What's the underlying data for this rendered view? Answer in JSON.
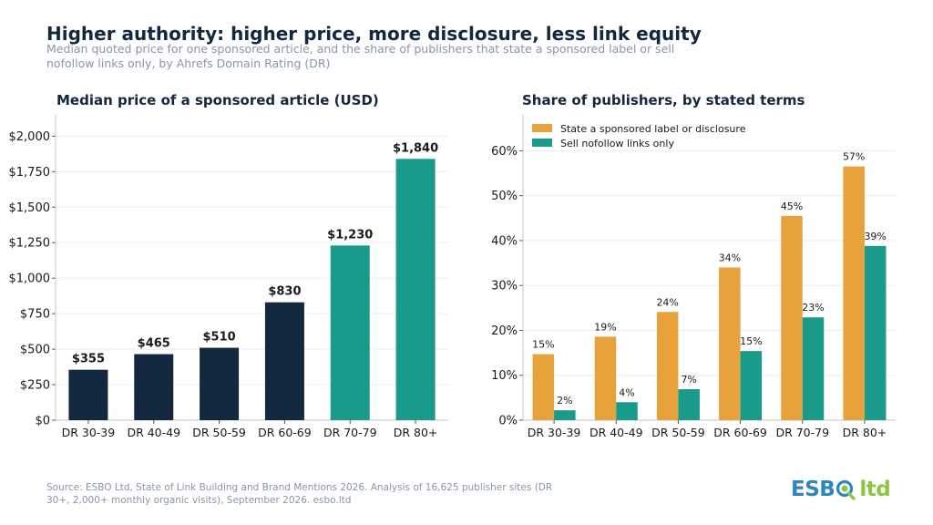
{
  "title": "Higher authority: higher price, more disclosure, less link equity",
  "subtitle": "Median quoted price for one sponsored article, and the share of publishers that state a sponsored label or sell nofollow links only, by Ahrefs Domain Rating (DR)",
  "source": "Source: ESBO Ltd, State of Link Building and Brand Mentions 2026. Analysis of 16,625 publisher sites (DR 30+, 2,000+ monthly organic visits), September 2026. esbo.ltd",
  "logo": {
    "part1": "ESB",
    "part2": "ltd",
    "icon": "magnifier-q-icon"
  },
  "colors": {
    "navy": "#13283f",
    "teal": "#1a9a8a",
    "orange": "#e8a23b",
    "grid": "#ebedf0",
    "axis": "#bfc4cc"
  },
  "chart_data": [
    {
      "type": "bar",
      "title": "Median price of a sponsored article (USD)",
      "categories": [
        "DR 30-39",
        "DR 40-49",
        "DR 50-59",
        "DR 60-69",
        "DR 70-79",
        "DR 80+"
      ],
      "values": [
        355,
        465,
        510,
        830,
        1230,
        1840
      ],
      "value_labels": [
        "$355",
        "$465",
        "$510",
        "$830",
        "$1,230",
        "$1,840"
      ],
      "bar_colors": [
        "#13283f",
        "#13283f",
        "#13283f",
        "#13283f",
        "#1a9a8a",
        "#1a9a8a"
      ],
      "yticks": [
        0,
        250,
        500,
        750,
        1000,
        1250,
        1500,
        1750,
        2000
      ],
      "ytick_labels": [
        "$0",
        "$250",
        "$500",
        "$750",
        "$1,000",
        "$1,250",
        "$1,500",
        "$1,750",
        "$2,000"
      ],
      "ylim": [
        0,
        2150
      ],
      "grid": true
    },
    {
      "type": "bar",
      "title": "Share of publishers, by stated terms",
      "categories": [
        "DR 30-39",
        "DR 40-49",
        "DR 50-59",
        "DR 60-69",
        "DR 70-79",
        "DR 80+"
      ],
      "series": [
        {
          "name": "State a sponsored label or disclosure",
          "color": "#e8a23b",
          "values": [
            14.7,
            18.6,
            24.1,
            34.0,
            45.5,
            56.5
          ],
          "labels": [
            "15%",
            "19%",
            "24%",
            "34%",
            "45%",
            "57%"
          ]
        },
        {
          "name": "Sell nofollow links only",
          "color": "#1a9a8a",
          "values": [
            2.2,
            4.0,
            6.9,
            15.4,
            22.9,
            38.8
          ],
          "labels": [
            "2%",
            "4%",
            "7%",
            "15%",
            "23%",
            "39%"
          ]
        }
      ],
      "yticks": [
        0,
        10,
        20,
        30,
        40,
        50,
        60
      ],
      "ytick_labels": [
        "0%",
        "10%",
        "20%",
        "30%",
        "40%",
        "50%",
        "60%"
      ],
      "ylim": [
        0,
        68
      ],
      "legend": "top-left",
      "grid": true
    }
  ]
}
